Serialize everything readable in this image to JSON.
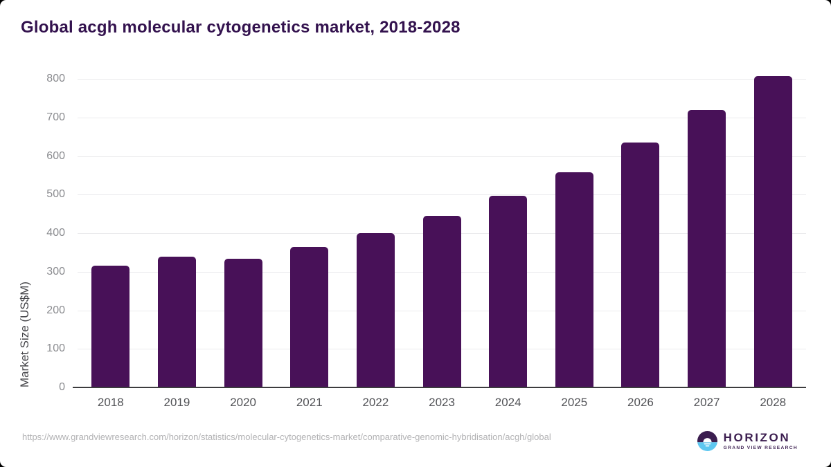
{
  "header": {
    "title": "Global acgh molecular cytogenetics market, 2018-2028"
  },
  "chart_data": {
    "type": "bar",
    "title": "Global acgh molecular cytogenetics market, 2018-2028",
    "categories": [
      "2018",
      "2019",
      "2020",
      "2021",
      "2022",
      "2023",
      "2024",
      "2025",
      "2026",
      "2027",
      "2028"
    ],
    "values": [
      315,
      340,
      333,
      364,
      401,
      445,
      497,
      558,
      636,
      720,
      808
    ],
    "series": [
      {
        "name": "Market Size (US$M)",
        "values": [
          315,
          340,
          333,
          364,
          401,
          445,
          497,
          558,
          636,
          720,
          808
        ]
      }
    ],
    "xlabel": "",
    "ylabel": "Market Size (US$M)",
    "ylim": [
      0,
      820
    ],
    "yticks": [
      0,
      100,
      200,
      300,
      400,
      500,
      600,
      700,
      800
    ],
    "grid": true,
    "legend": false,
    "bar_color": "#481158"
  },
  "footer": {
    "source_url": "https://www.grandviewresearch.com/horizon/statistics/molecular-cytogenetics-market/comparative-genomic-hybridisation/acgh/global",
    "logo": {
      "wordmark": "HORIZON",
      "subtitle": "GRAND VIEW RESEARCH",
      "purple": "#3b1d4f",
      "blue": "#5ec7f0"
    }
  },
  "colors": {
    "bar": "#481158",
    "title_text": "#33124e",
    "y_tick_text": "#8a8b8f",
    "x_tick_text": "#515256",
    "grid_line": "#ebebed",
    "axis_line": "#3c3c3e",
    "source_text": "#b2b2b4"
  }
}
